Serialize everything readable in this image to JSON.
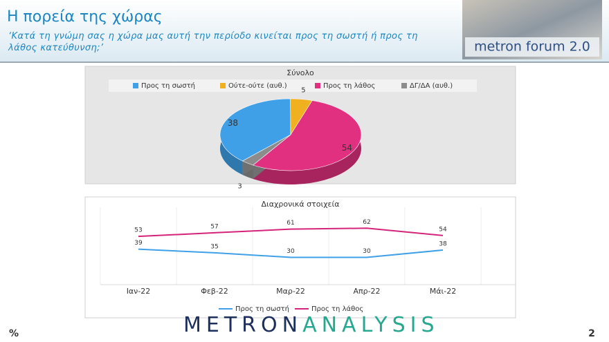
{
  "header": {
    "title": "Η πορεία της χώρας",
    "subtitle": "‘Κατά τη γνώμη σας η χώρα μας αυτή την περίοδο κινείται προς τη σωστή ή προς τη λάθος κατεύθυνση;’",
    "logo": "metron forum 2.0"
  },
  "chart_data": [
    {
      "type": "pie",
      "title": "Σύνολο",
      "categories": [
        "Προς τη σωστή",
        "Ούτε-ούτε (αυθ.)",
        "Προς τη λάθος",
        "ΔΓ/ΔΑ (αυθ.)"
      ],
      "values": [
        38,
        5,
        54,
        3
      ],
      "colors": [
        "#3fa0e8",
        "#f0b020",
        "#e0307f",
        "#8c8c8c"
      ],
      "legend": "top"
    },
    {
      "type": "line",
      "title": "Διαχρονικά στοιχεία",
      "categories": [
        "Ιαν-22",
        "Φεβ-22",
        "Μαρ-22",
        "Απρ-22",
        "Μάι-22"
      ],
      "series": [
        {
          "name": "Προς τη σωστή",
          "color": "#3fa0e8",
          "values": [
            39,
            35,
            30,
            30,
            38
          ]
        },
        {
          "name": "Προς τη λάθος",
          "color": "#d6237a",
          "values": [
            53,
            57,
            61,
            62,
            54
          ]
        }
      ],
      "ylim": [
        0,
        85
      ],
      "legend": "bottom"
    }
  ],
  "footer": {
    "unit": "%",
    "brand_left": "METRON",
    "brand_right": "ANALYSIS",
    "page": "2"
  }
}
